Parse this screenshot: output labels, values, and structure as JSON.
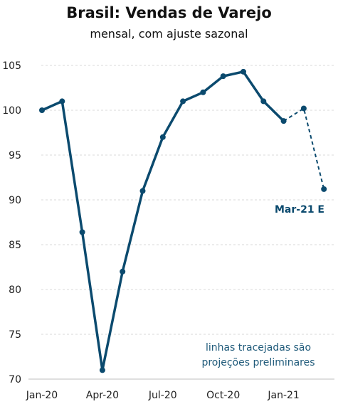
{
  "chart_data": {
    "type": "line",
    "title": "Brasil: Vendas de Varejo",
    "subtitle": "mensal, com ajuste sazonal",
    "x": [
      "Jan-20",
      "Feb-20",
      "Mar-20",
      "Apr-20",
      "May-20",
      "Jun-20",
      "Jul-20",
      "Aug-20",
      "Sep-20",
      "Oct-20",
      "Nov-20",
      "Dec-20",
      "Jan-21",
      "Feb-21",
      "Mar-21"
    ],
    "x_tick_labels": [
      "Jan-20",
      "Apr-20",
      "Jul-20",
      "Oct-20",
      "Jan-21"
    ],
    "series": [
      {
        "values": [
          100.0,
          101.0,
          86.4,
          71.0,
          82.0,
          91.0,
          97.0,
          101.0,
          102.0,
          103.8,
          104.3,
          101.0,
          98.8,
          100.2,
          91.2
        ],
        "color": "#0b4a6e",
        "projected_from_index": 12
      }
    ],
    "ylim": [
      70,
      105
    ],
    "y_ticks": [
      70,
      75,
      80,
      85,
      90,
      95,
      100,
      105
    ],
    "grid": "horizontal dashed",
    "annotations": {
      "last_point_label": "Mar-21 E",
      "note_line1": "linhas tracejadas são",
      "note_line2": "projeções preliminares"
    },
    "colors": {
      "line": "#0b4a6e",
      "note": "#1f5a7a",
      "grid": "#d9d9d9"
    }
  }
}
